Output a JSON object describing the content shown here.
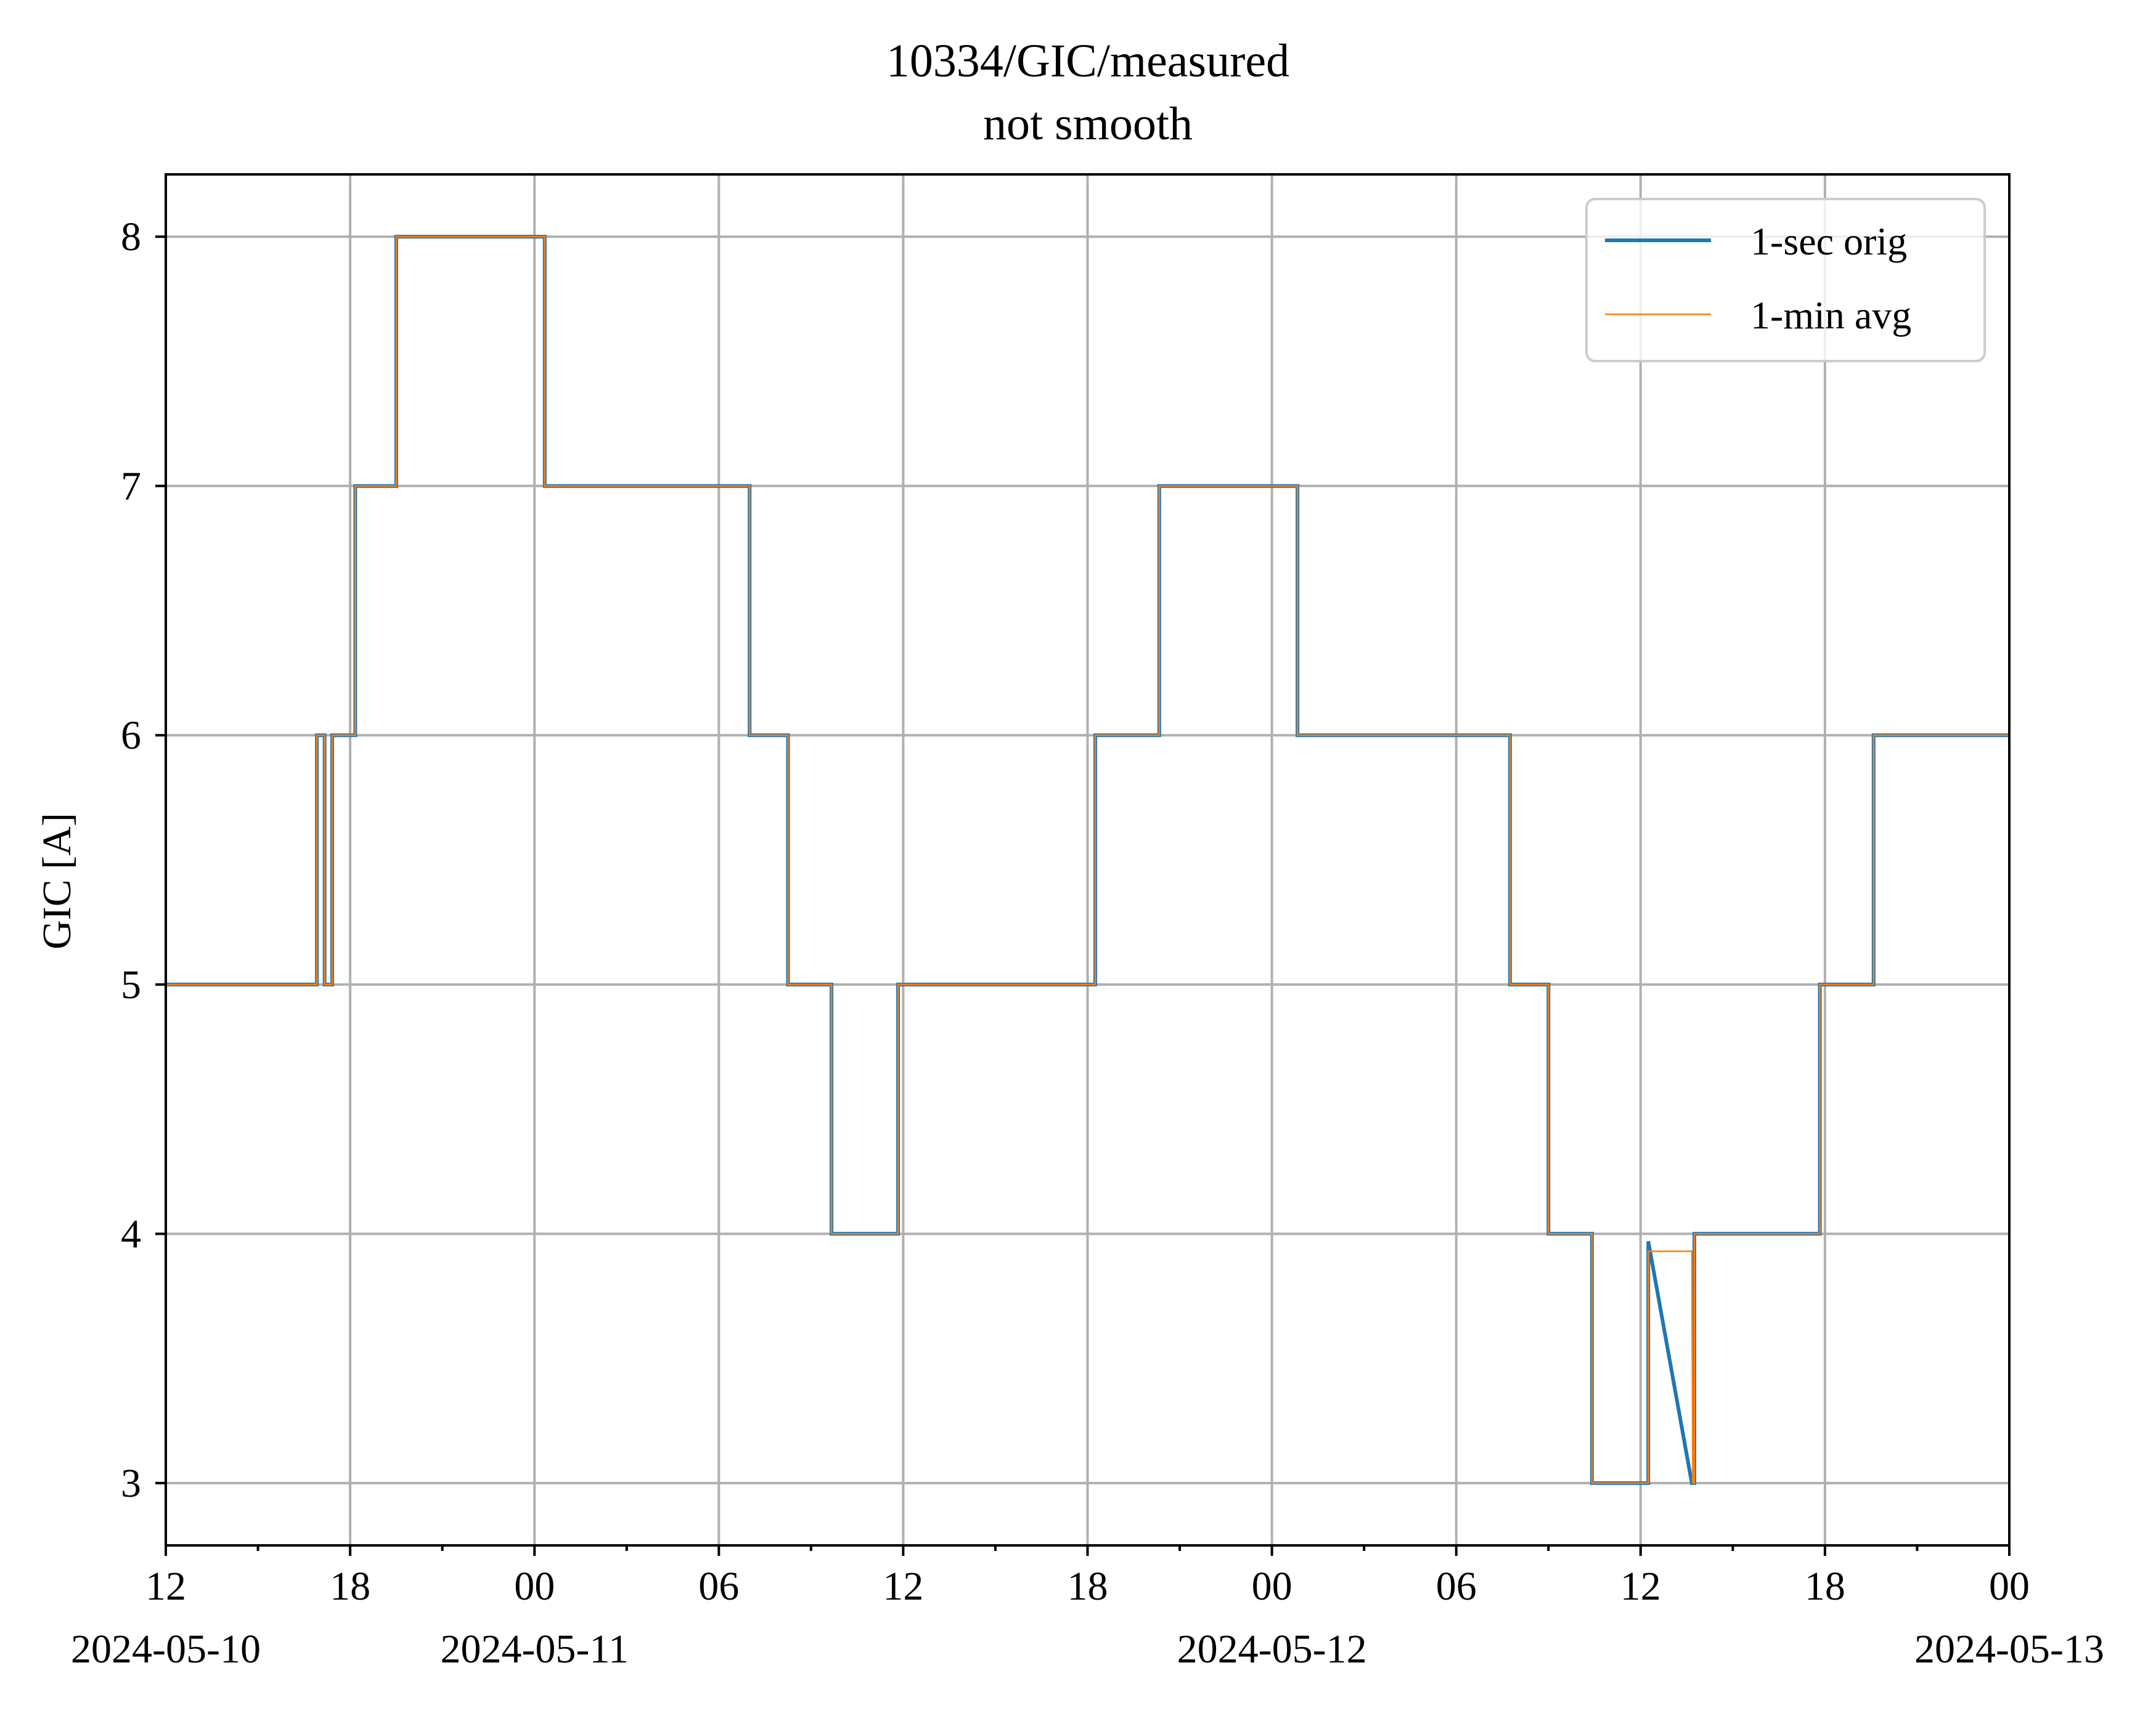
{
  "chart_data": {
    "type": "line",
    "title": "10334/GIC/measured",
    "subtitle": "not smooth",
    "xlabel": "",
    "ylabel": "GIC [A]",
    "ylim": [
      2.75,
      8.25
    ],
    "xlim": [
      "2024-05-10T12:00",
      "2024-05-13T00:00"
    ],
    "yticks": [
      "3",
      "4",
      "5",
      "6",
      "7",
      "8"
    ],
    "xticks": [
      {
        "value": "2024-05-10T12:00",
        "label": "12",
        "date": "2024-05-10"
      },
      {
        "value": "2024-05-10T18:00",
        "label": "18",
        "date": ""
      },
      {
        "value": "2024-05-11T00:00",
        "label": "00",
        "date": "2024-05-11"
      },
      {
        "value": "2024-05-11T06:00",
        "label": "06",
        "date": ""
      },
      {
        "value": "2024-05-11T12:00",
        "label": "12",
        "date": ""
      },
      {
        "value": "2024-05-11T18:00",
        "label": "18",
        "date": ""
      },
      {
        "value": "2024-05-12T00:00",
        "label": "00",
        "date": "2024-05-12"
      },
      {
        "value": "2024-05-12T06:00",
        "label": "06",
        "date": ""
      },
      {
        "value": "2024-05-12T12:00",
        "label": "12",
        "date": ""
      },
      {
        "value": "2024-05-12T18:00",
        "label": "18",
        "date": ""
      },
      {
        "value": "2024-05-13T00:00",
        "label": "00",
        "date": "2024-05-13"
      }
    ],
    "grid": true,
    "legend_position": "upper right",
    "series": [
      {
        "name": "1-sec orig",
        "color": "#1f77b4",
        "x": [
          "2024-05-10T12:00",
          "2024-05-10T16:55",
          "2024-05-10T16:55",
          "2024-05-10T17:10",
          "2024-05-10T17:10",
          "2024-05-10T17:25",
          "2024-05-10T17:25",
          "2024-05-10T18:10",
          "2024-05-10T18:10",
          "2024-05-10T19:30",
          "2024-05-10T19:30",
          "2024-05-11T00:20",
          "2024-05-11T00:20",
          "2024-05-11T07:00",
          "2024-05-11T07:00",
          "2024-05-11T08:15",
          "2024-05-11T08:15",
          "2024-05-11T09:40",
          "2024-05-11T09:40",
          "2024-05-11T11:50",
          "2024-05-11T11:50",
          "2024-05-11T18:15",
          "2024-05-11T18:15",
          "2024-05-11T20:20",
          "2024-05-11T20:20",
          "2024-05-12T00:50",
          "2024-05-12T00:50",
          "2024-05-12T07:45",
          "2024-05-12T07:45",
          "2024-05-12T09:00",
          "2024-05-12T09:00",
          "2024-05-12T10:25",
          "2024-05-12T10:25",
          "2024-05-12T12:15",
          "2024-05-12T12:15",
          "2024-05-12T13:40",
          "2024-05-12T13:40",
          "2024-05-12T13:45",
          "2024-05-12T13:45",
          "2024-05-12T17:50",
          "2024-05-12T17:50",
          "2024-05-12T19:35",
          "2024-05-12T19:35",
          "2024-05-12T21:55",
          "2024-05-12T21:55",
          "2024-05-13T00:00"
        ],
        "y": [
          5,
          5,
          6,
          6,
          5,
          5,
          6,
          6,
          7,
          7,
          8,
          8,
          7,
          7,
          6,
          6,
          5,
          5,
          4,
          4,
          5,
          5,
          6,
          6,
          7,
          7,
          6,
          6,
          5,
          5,
          4,
          4,
          3,
          3,
          3.97,
          3,
          3,
          3,
          4,
          4,
          5,
          5,
          6,
          6,
          6,
          6
        ]
      },
      {
        "name": "1-min avg",
        "color": "#ff7f0e",
        "x": [
          "2024-05-10T12:00",
          "2024-05-10T16:55",
          "2024-05-10T16:55",
          "2024-05-10T17:10",
          "2024-05-10T17:10",
          "2024-05-10T17:25",
          "2024-05-10T17:25",
          "2024-05-10T18:10",
          "2024-05-10T18:10",
          "2024-05-10T19:30",
          "2024-05-10T19:30",
          "2024-05-11T00:20",
          "2024-05-11T00:20",
          "2024-05-11T07:00",
          "2024-05-11T07:00",
          "2024-05-11T08:15",
          "2024-05-11T08:15",
          "2024-05-11T09:40",
          "2024-05-11T09:40",
          "2024-05-11T11:50",
          "2024-05-11T11:50",
          "2024-05-11T18:15",
          "2024-05-11T18:15",
          "2024-05-11T20:20",
          "2024-05-11T20:20",
          "2024-05-12T00:50",
          "2024-05-12T00:50",
          "2024-05-12T07:45",
          "2024-05-12T07:45",
          "2024-05-12T09:00",
          "2024-05-12T09:00",
          "2024-05-12T10:25",
          "2024-05-12T10:25",
          "2024-05-12T12:15",
          "2024-05-12T12:15",
          "2024-05-12T13:40",
          "2024-05-12T13:42",
          "2024-05-12T13:45",
          "2024-05-12T13:45",
          "2024-05-12T17:50",
          "2024-05-12T17:50",
          "2024-05-12T19:35",
          "2024-05-12T19:35",
          "2024-05-12T21:55",
          "2024-05-12T21:55",
          "2024-05-13T00:00"
        ],
        "y": [
          5,
          5,
          6,
          6,
          5,
          5,
          6,
          6,
          7,
          7,
          8,
          8,
          7,
          7,
          6,
          6,
          5,
          5,
          4,
          4,
          5,
          5,
          6,
          6,
          7,
          7,
          6,
          6,
          5,
          5,
          4,
          4,
          3,
          3,
          3.93,
          3.93,
          3,
          3,
          4,
          4,
          5,
          5,
          6,
          6,
          6,
          6
        ]
      }
    ]
  }
}
